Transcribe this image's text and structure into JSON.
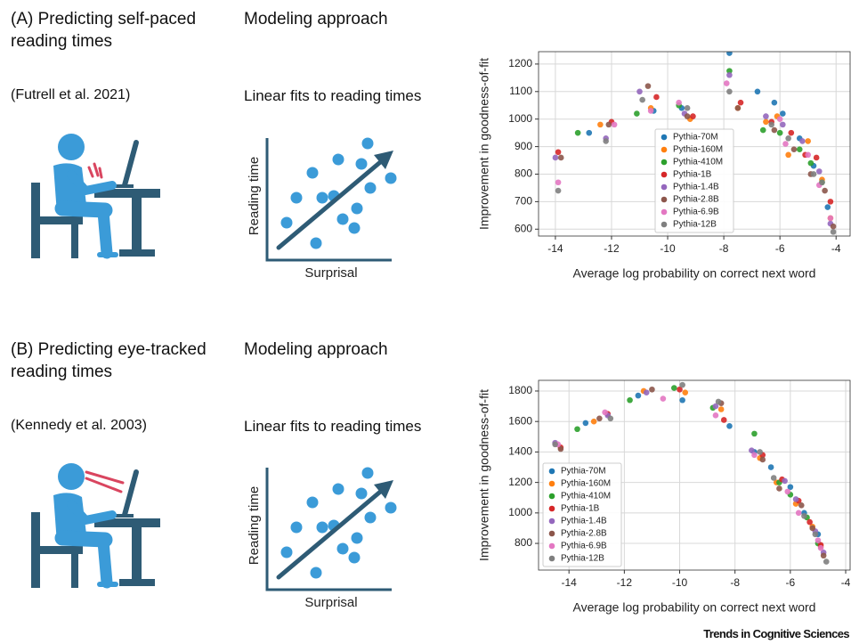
{
  "panels": [
    {
      "title": "(A) Predicting self-paced reading times",
      "citation": "(Futrell et al. 2021)",
      "approach": "Modeling approach",
      "method": "Linear fits to reading times",
      "illus_ylabel": "Reading time",
      "illus_xlabel": "Surprisal"
    },
    {
      "title": "(B) Predicting eye-tracked reading times",
      "citation": "(Kennedy et al. 2003)",
      "approach": "Modeling approach",
      "method": "Linear fits to reading times",
      "illus_ylabel": "Reading time",
      "illus_xlabel": "Surprisal"
    }
  ],
  "chart_data": [
    {
      "type": "scatter",
      "xlabel": "Average log probability on correct next word",
      "ylabel": "Improvement in goodness-of-fit",
      "xlim": [
        -14.6,
        -3.5
      ],
      "ylim": [
        575,
        1245
      ],
      "xticks": [
        -14,
        -12,
        -10,
        -8,
        -6,
        -4
      ],
      "yticks": [
        600,
        700,
        800,
        900,
        1000,
        1100,
        1200
      ],
      "grid": true,
      "legend": "lower center",
      "series": [
        {
          "name": "Pythia-70M",
          "color": "#1f77b4",
          "x": [
            -12.8,
            -10.5,
            -9.5,
            -7.8,
            -6.8,
            -6.2,
            -5.9,
            -5.3,
            -4.8,
            -4.3
          ],
          "values": [
            950,
            1030,
            1040,
            1240,
            1100,
            1060,
            1020,
            930,
            830,
            680
          ]
        },
        {
          "name": "Pythia-160M",
          "color": "#ff7f0e",
          "x": [
            -12.4,
            -10.6,
            -9.2,
            -7.5,
            -6.5,
            -6.1,
            -5.7,
            -5.0,
            -4.5,
            -4.2
          ],
          "values": [
            980,
            1040,
            1000,
            1040,
            990,
            1010,
            870,
            920,
            780,
            640
          ]
        },
        {
          "name": "Pythia-410M",
          "color": "#2ca02c",
          "x": [
            -13.2,
            -11.1,
            -9.6,
            -7.8,
            -6.6,
            -6.0,
            -5.3,
            -4.9,
            -4.5
          ],
          "values": [
            950,
            1020,
            1050,
            1175,
            960,
            950,
            890,
            840,
            770
          ]
        },
        {
          "name": "Pythia-1B",
          "color": "#d62728",
          "x": [
            -13.9,
            -12.0,
            -10.4,
            -9.1,
            -7.4,
            -6.3,
            -5.6,
            -5.1,
            -4.7,
            -4.2
          ],
          "values": [
            880,
            990,
            1080,
            1010,
            1060,
            990,
            950,
            870,
            860,
            700
          ]
        },
        {
          "name": "Pythia-1.4B",
          "color": "#9467bd",
          "x": [
            -14.0,
            -12.2,
            -11.0,
            -9.4,
            -7.8,
            -6.5,
            -5.9,
            -5.2,
            -4.6,
            -4.2
          ],
          "values": [
            860,
            930,
            1100,
            1020,
            1160,
            1010,
            980,
            920,
            810,
            620
          ]
        },
        {
          "name": "Pythia-2.8B",
          "color": "#8c564b",
          "x": [
            -13.8,
            -12.1,
            -10.7,
            -9.3,
            -7.5,
            -6.2,
            -5.5,
            -4.9,
            -4.4,
            -4.1
          ],
          "values": [
            860,
            980,
            1120,
            1010,
            1040,
            960,
            890,
            800,
            740,
            610
          ]
        },
        {
          "name": "Pythia-6.9B",
          "color": "#e377c2",
          "x": [
            -13.9,
            -11.9,
            -10.6,
            -9.6,
            -7.9,
            -6.0,
            -5.8,
            -5.0,
            -4.6,
            -4.2
          ],
          "values": [
            770,
            980,
            1030,
            1060,
            1130,
            1000,
            910,
            870,
            760,
            640
          ]
        },
        {
          "name": "Pythia-12B",
          "color": "#7f7f7f",
          "x": [
            -13.9,
            -12.2,
            -10.9,
            -9.3,
            -7.8,
            -6.3,
            -5.7,
            -4.8,
            -4.5,
            -4.1
          ],
          "values": [
            740,
            920,
            1070,
            1040,
            1100,
            980,
            930,
            800,
            770,
            590
          ]
        }
      ]
    },
    {
      "type": "scatter",
      "xlabel": "Average log probability on correct next word",
      "ylabel": "Improvement in goodness-of-fit",
      "xlim": [
        -15.1,
        -3.84
      ],
      "ylim": [
        625,
        1870
      ],
      "xticks": [
        -14,
        -12,
        -10,
        -8,
        -6,
        -4
      ],
      "yticks": [
        800,
        1000,
        1200,
        1400,
        1600,
        1800
      ],
      "grid": true,
      "legend": "lower left",
      "series": [
        {
          "name": "Pythia-70M",
          "color": "#1f77b4",
          "x": [
            -13.4,
            -11.5,
            -9.9,
            -8.2,
            -7.3,
            -6.7,
            -6.0,
            -5.5,
            -5.0
          ],
          "values": [
            1590,
            1770,
            1740,
            1570,
            1400,
            1300,
            1170,
            1000,
            860
          ]
        },
        {
          "name": "Pythia-160M",
          "color": "#ff7f0e",
          "x": [
            -13.1,
            -11.3,
            -9.8,
            -8.5,
            -7.1,
            -6.5,
            -5.8,
            -5.2,
            -4.9
          ],
          "values": [
            1600,
            1800,
            1790,
            1680,
            1360,
            1200,
            1060,
            910,
            780
          ]
        },
        {
          "name": "Pythia-410M",
          "color": "#2ca02c",
          "x": [
            -13.7,
            -11.8,
            -10.2,
            -8.8,
            -7.3,
            -6.4,
            -6.0,
            -5.4,
            -5.0
          ],
          "values": [
            1550,
            1740,
            1820,
            1690,
            1520,
            1200,
            1120,
            970,
            800
          ]
        },
        {
          "name": "Pythia-1B",
          "color": "#d62728",
          "x": [
            -14.3,
            -12.6,
            -10.0,
            -8.4,
            -7.0,
            -6.3,
            -5.7,
            -5.3,
            -4.9
          ],
          "values": [
            1430,
            1650,
            1810,
            1610,
            1380,
            1220,
            1080,
            940,
            790
          ]
        },
        {
          "name": "Pythia-1.4B",
          "color": "#9467bd",
          "x": [
            -14.5,
            -12.6,
            -11.2,
            -8.7,
            -7.4,
            -6.2,
            -5.8,
            -5.1,
            -4.8
          ],
          "values": [
            1460,
            1640,
            1790,
            1700,
            1410,
            1210,
            1090,
            880,
            740
          ]
        },
        {
          "name": "Pythia-2.8B",
          "color": "#8c564b",
          "x": [
            -14.3,
            -12.9,
            -11.0,
            -8.5,
            -7.0,
            -6.4,
            -5.6,
            -5.2,
            -4.8
          ],
          "values": [
            1420,
            1620,
            1810,
            1720,
            1350,
            1160,
            1050,
            900,
            720
          ]
        },
        {
          "name": "Pythia-6.9B",
          "color": "#e377c2",
          "x": [
            -14.4,
            -12.7,
            -10.6,
            -8.7,
            -7.3,
            -6.1,
            -5.7,
            -5.0,
            -4.9
          ],
          "values": [
            1450,
            1660,
            1750,
            1640,
            1380,
            1140,
            1000,
            820,
            770
          ]
        },
        {
          "name": "Pythia-12B",
          "color": "#7f7f7f",
          "x": [
            -14.5,
            -12.5,
            -9.9,
            -8.6,
            -7.1,
            -6.6,
            -5.5,
            -5.1,
            -4.7
          ],
          "values": [
            1450,
            1620,
            1840,
            1730,
            1400,
            1230,
            980,
            860,
            680
          ]
        }
      ]
    }
  ],
  "footer": "Trends in Cognitive Sciences"
}
